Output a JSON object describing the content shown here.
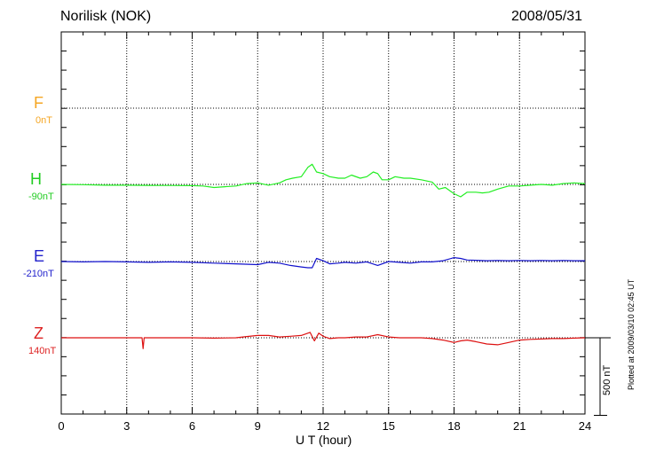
{
  "header": {
    "station": "Norilisk (NOK)",
    "date": "2008/05/31"
  },
  "components": [
    {
      "name": "F",
      "baseline": "0nT",
      "color": "#f5a623"
    },
    {
      "name": "H",
      "baseline": "-90nT",
      "color": "#22cc22"
    },
    {
      "name": "E",
      "baseline": "-210nT",
      "color": "#2222cc"
    },
    {
      "name": "Z",
      "baseline": "140nT",
      "color": "#dd2222"
    }
  ],
  "side_note": "Plotted at 2009/03/10 02:45 UT",
  "scale_label": "500 nT",
  "chart_data": {
    "type": "line",
    "title": "Norilisk (NOK)",
    "xlabel": "U T (hour)",
    "ylabel": "",
    "xlim": [
      0,
      24
    ],
    "xticks": [
      0,
      3,
      6,
      9,
      12,
      15,
      18,
      21,
      24
    ],
    "grid": true,
    "units": "nT",
    "series": [
      {
        "name": "H",
        "color": "#22ee22",
        "baseline": -90,
        "x": [
          0,
          1,
          2,
          3,
          4,
          5,
          6,
          6.5,
          7,
          7.5,
          8,
          8.5,
          9,
          9.5,
          10,
          10.3,
          10.6,
          11,
          11.3,
          11.5,
          11.7,
          12,
          12.3,
          12.7,
          13,
          13.3,
          13.7,
          14,
          14.3,
          14.5,
          14.7,
          15,
          15.3,
          15.7,
          16,
          16.5,
          17,
          17.3,
          17.6,
          18,
          18.3,
          18.6,
          19,
          19.3,
          19.6,
          20,
          20.5,
          21,
          21.5,
          22,
          22.5,
          23,
          23.5,
          24
        ],
        "y": [
          -90,
          -92,
          -95,
          -95,
          -96,
          -97,
          -98,
          -100,
          -110,
          -105,
          -100,
          -85,
          -80,
          -95,
          -80,
          -60,
          -50,
          -40,
          20,
          40,
          -10,
          -20,
          -40,
          -50,
          -50,
          -30,
          -50,
          -40,
          -10,
          -20,
          -60,
          -60,
          -40,
          -50,
          -50,
          -60,
          -75,
          -120,
          -110,
          -150,
          -170,
          -140,
          -140,
          -145,
          -140,
          -120,
          -100,
          -100,
          -95,
          -90,
          -95,
          -85,
          -80,
          -85
        ]
      },
      {
        "name": "E",
        "color": "#1111cc",
        "baseline": -210,
        "x": [
          0,
          1,
          2,
          3,
          4,
          5,
          6,
          7,
          8,
          9,
          9.5,
          10,
          10.5,
          11,
          11.3,
          11.5,
          11.7,
          12,
          12.3,
          12.7,
          13,
          13.5,
          14,
          14.5,
          15,
          15.5,
          16,
          16.5,
          17,
          17.5,
          18,
          18.3,
          18.6,
          19,
          19.5,
          20,
          20.5,
          21,
          21.5,
          22,
          22.5,
          23,
          23.5,
          24
        ],
        "y": [
          -210,
          -212,
          -210,
          -212,
          -215,
          -212,
          -215,
          -220,
          -225,
          -230,
          -215,
          -220,
          -235,
          -245,
          -250,
          -250,
          -190,
          -205,
          -225,
          -220,
          -215,
          -220,
          -212,
          -235,
          -210,
          -215,
          -220,
          -212,
          -212,
          -205,
          -185,
          -190,
          -200,
          -202,
          -205,
          -203,
          -205,
          -203,
          -205,
          -203,
          -205,
          -203,
          -205,
          -205
        ]
      },
      {
        "name": "Z",
        "color": "#dd1111",
        "baseline": 140,
        "x": [
          0,
          1,
          2,
          3,
          3.7,
          3.75,
          3.8,
          4,
          5,
          6,
          7,
          8,
          8.5,
          9,
          9.5,
          10,
          10.5,
          11,
          11.4,
          11.6,
          11.8,
          12,
          12.3,
          12.7,
          13,
          13.5,
          14,
          14.5,
          15,
          15.5,
          16,
          16.5,
          17,
          17.5,
          18,
          18.3,
          18.6,
          19,
          19.5,
          20,
          20.5,
          21,
          21.5,
          22,
          22.5,
          23,
          23.5,
          24
        ],
        "y": [
          140,
          140,
          140,
          140,
          140,
          70,
          140,
          140,
          140,
          140,
          138,
          140,
          148,
          155,
          155,
          145,
          150,
          155,
          175,
          120,
          170,
          150,
          135,
          140,
          140,
          145,
          145,
          160,
          145,
          140,
          140,
          140,
          135,
          125,
          110,
          120,
          125,
          115,
          100,
          95,
          110,
          125,
          130,
          132,
          135,
          135,
          138,
          140
        ]
      }
    ]
  }
}
